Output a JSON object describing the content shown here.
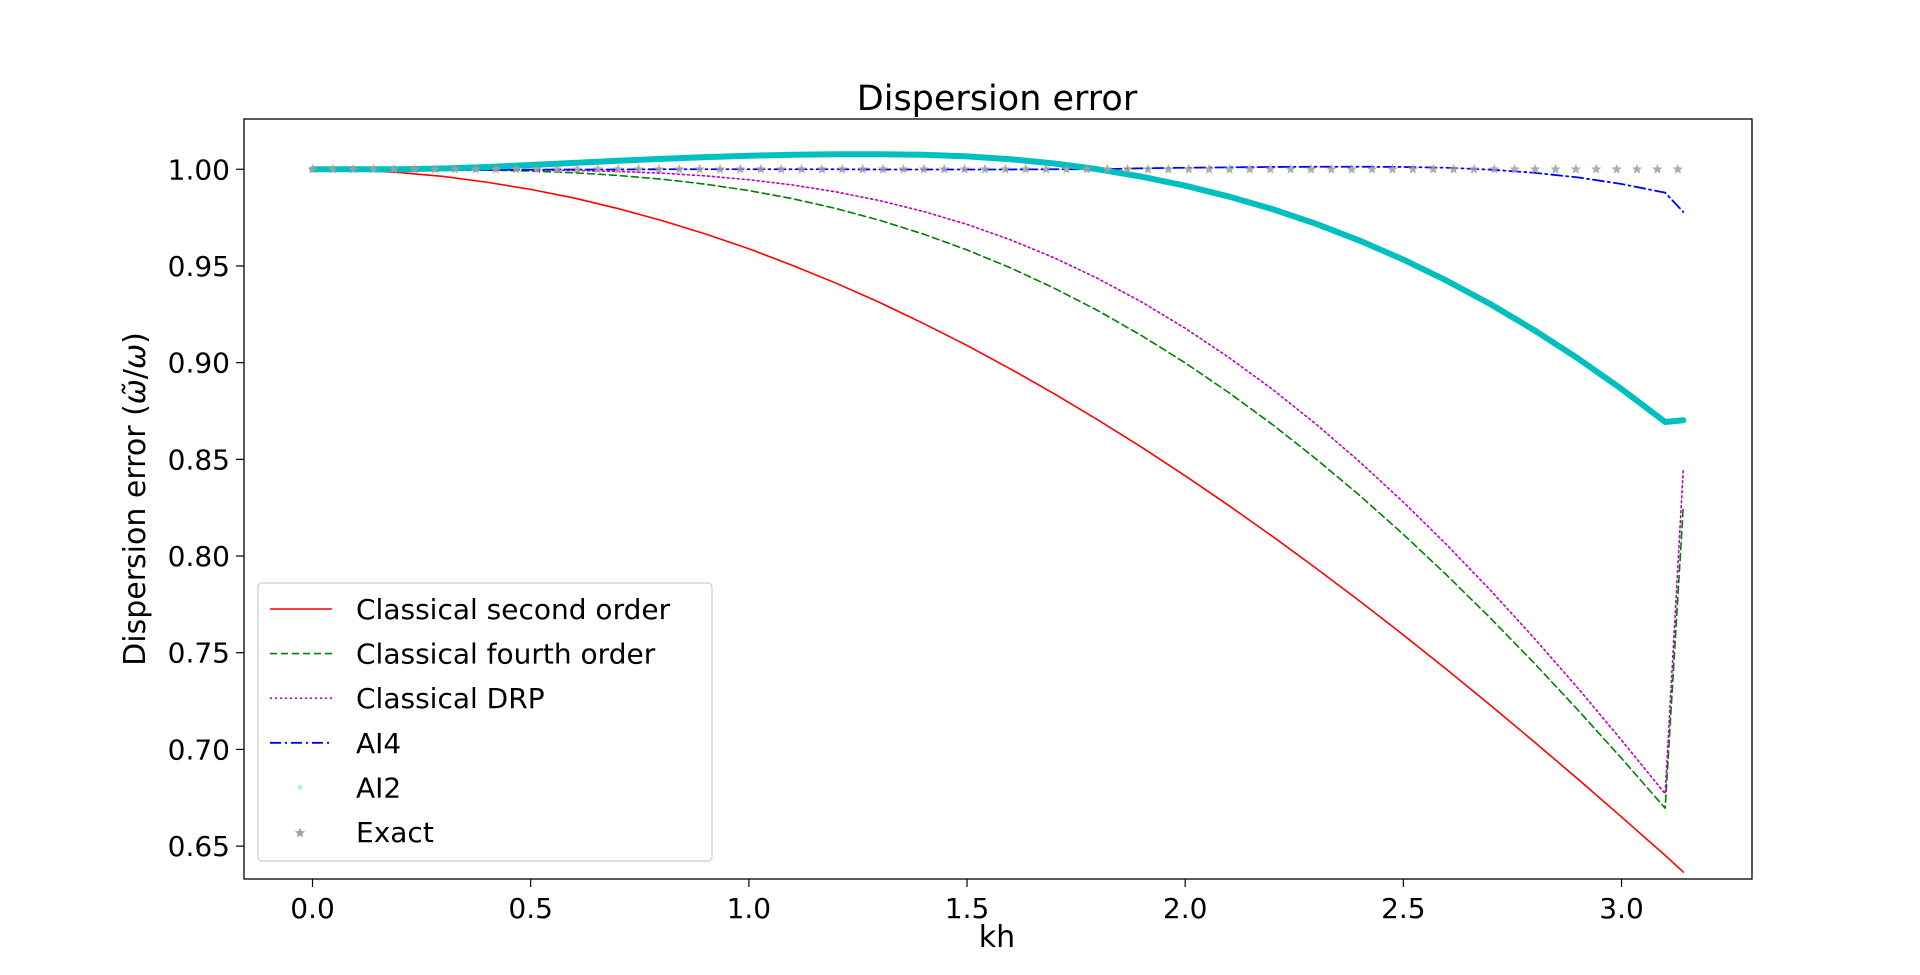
{
  "chart_data": {
    "type": "line",
    "title": "Dispersion error",
    "xlabel": "kh",
    "ylabel": "Dispersion error (ω̃/ω)",
    "xlim": [
      -0.157,
      3.299
    ],
    "ylim": [
      0.633,
      1.026
    ],
    "xticks": [
      "0.0",
      "0.5",
      "1.0",
      "1.5",
      "2.0",
      "2.5",
      "3.0"
    ],
    "yticks": [
      "0.65",
      "0.70",
      "0.75",
      "0.80",
      "0.85",
      "0.90",
      "0.95",
      "1.00"
    ],
    "grid": false,
    "legend_position": "lower-left",
    "x": [
      0.0,
      0.1,
      0.2,
      0.3,
      0.4,
      0.5,
      0.6,
      0.7,
      0.8,
      0.9,
      1.0,
      1.1,
      1.2,
      1.3,
      1.4,
      1.5,
      1.6,
      1.7,
      1.8,
      1.9,
      2.0,
      2.1,
      2.2,
      2.3,
      2.4,
      2.5,
      2.6,
      2.7,
      2.8,
      2.9,
      3.0,
      3.1,
      3.1416
    ],
    "series": [
      {
        "name": "Classical second order",
        "color": "#ff0000",
        "style": "solid",
        "values": [
          1.0,
          0.9996,
          0.9983,
          0.9963,
          0.9933,
          0.9896,
          0.9851,
          0.9797,
          0.9735,
          0.9666,
          0.9589,
          0.9503,
          0.9411,
          0.9311,
          0.9203,
          0.9089,
          0.8967,
          0.8839,
          0.8704,
          0.8563,
          0.8415,
          0.8261,
          0.8102,
          0.7937,
          0.7767,
          0.7592,
          0.7412,
          0.7228,
          0.7039,
          0.6847,
          0.6651,
          0.6452,
          0.6366
        ]
      },
      {
        "name": "Classical fourth order",
        "color": "#008000",
        "style": "dashed",
        "values": [
          1.0,
          1.0,
          1.0,
          0.9999,
          0.9996,
          0.9991,
          0.9982,
          0.9968,
          0.9949,
          0.9923,
          0.989,
          0.9848,
          0.9797,
          0.9736,
          0.9665,
          0.9583,
          0.949,
          0.9385,
          0.9269,
          0.914,
          0.8999,
          0.8845,
          0.868,
          0.8502,
          0.8313,
          0.8112,
          0.79,
          0.7678,
          0.7446,
          0.7204,
          0.6954,
          0.6696,
          0.8259
        ]
      },
      {
        "name": "Classical DRP",
        "color": "#bf00bf",
        "style": "dotted",
        "values": [
          1.0,
          1.0,
          1.0,
          1.0,
          0.9999,
          0.9997,
          0.9994,
          0.9989,
          0.998,
          0.9966,
          0.9946,
          0.9919,
          0.9883,
          0.9838,
          0.9782,
          0.9715,
          0.9635,
          0.9542,
          0.9435,
          0.9314,
          0.9178,
          0.9027,
          0.8862,
          0.8682,
          0.8487,
          0.8279,
          0.8057,
          0.7822,
          0.7575,
          0.7317,
          0.7048,
          0.6771,
          0.8452
        ]
      },
      {
        "name": "AI4",
        "color": "#0000ff",
        "style": "dashdot",
        "values": [
          0.9995,
          0.9995,
          0.9995,
          0.9996,
          0.9997,
          0.9998,
          0.9999,
          0.9999,
          1.0,
          1.0,
          1.0,
          1.0,
          1.0,
          0.9999,
          0.9999,
          0.9999,
          0.9999,
          1.0,
          1.0,
          1.0005,
          1.0008,
          1.001,
          1.0012,
          1.0013,
          1.0013,
          1.0012,
          1.0008,
          0.9998,
          0.9982,
          0.9958,
          0.9924,
          0.9879,
          0.9779
        ]
      },
      {
        "name": "AI2",
        "color": "#00bfbf",
        "style": "thick",
        "values": [
          1.0,
          1.0,
          1.0,
          1.0004,
          1.0012,
          1.0022,
          1.0033,
          1.0044,
          1.0054,
          1.0063,
          1.007,
          1.0075,
          1.0078,
          1.0078,
          1.0075,
          1.0067,
          1.0052,
          1.003,
          1.0,
          0.9962,
          0.9915,
          0.9859,
          0.9794,
          0.9718,
          0.9631,
          0.9533,
          0.9423,
          0.9302,
          0.9168,
          0.9022,
          0.8864,
          0.8693,
          0.8702
        ]
      },
      {
        "name": "Exact",
        "color": "#a0a0a0",
        "style": "star",
        "values": [
          1.0,
          1.0,
          1.0,
          1.0,
          1.0,
          1.0,
          1.0,
          1.0,
          1.0,
          1.0,
          1.0,
          1.0,
          1.0,
          1.0,
          1.0,
          1.0,
          1.0,
          1.0,
          1.0,
          1.0,
          1.0,
          1.0,
          1.0,
          1.0,
          1.0,
          1.0,
          1.0,
          1.0,
          1.0,
          1.0,
          1.0,
          1.0,
          1.0
        ]
      }
    ]
  }
}
